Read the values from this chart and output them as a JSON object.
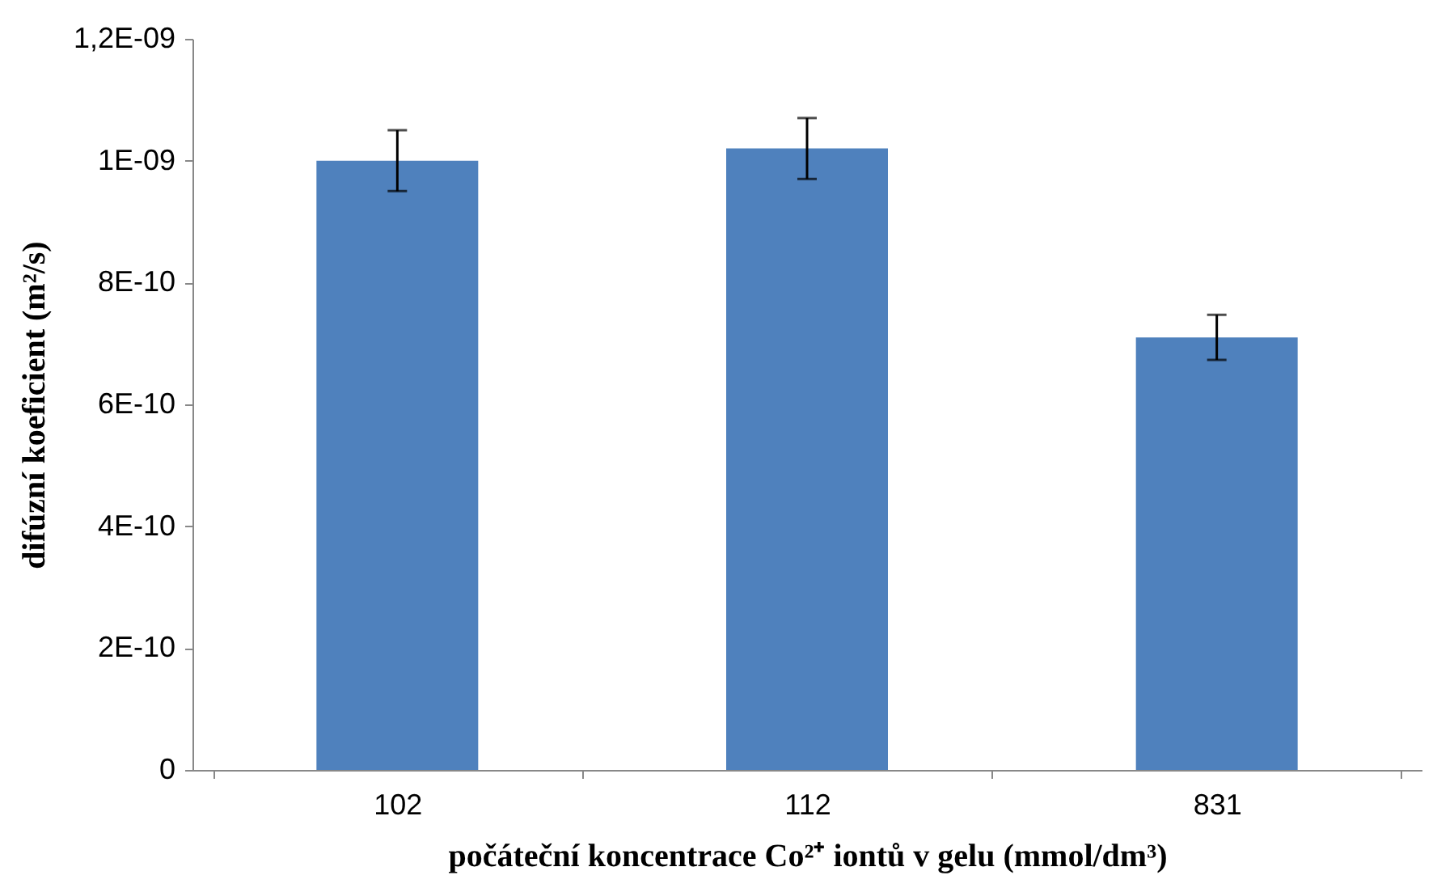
{
  "chart_data": {
    "type": "bar",
    "xlabel": "počáteční koncentrace Co²⁺ iontů v gelu (mmol/dm³)",
    "ylabel": "difúzní koeficient (m²/s)",
    "categories": [
      "102",
      "112",
      "831"
    ],
    "values": [
      1e-09,
      1.02e-09,
      7.1e-10
    ],
    "errors": [
      5e-11,
      5e-11,
      3.7e-11
    ],
    "color": "#4f81bd",
    "ylim": [
      0,
      1.2e-09
    ],
    "yticks": [
      0,
      {
        "value": 2e-10,
        "label": "2E-10"
      },
      {
        "value": 4e-10,
        "label": "4E-10"
      },
      {
        "value": 6e-10,
        "label": "6E-10"
      },
      {
        "value": 8e-10,
        "label": "8E-10"
      },
      {
        "value": 1e-09,
        "label": "1E-09"
      },
      {
        "value": 1.2e-09,
        "label": "1,2E-09"
      }
    ],
    "grid": false
  }
}
